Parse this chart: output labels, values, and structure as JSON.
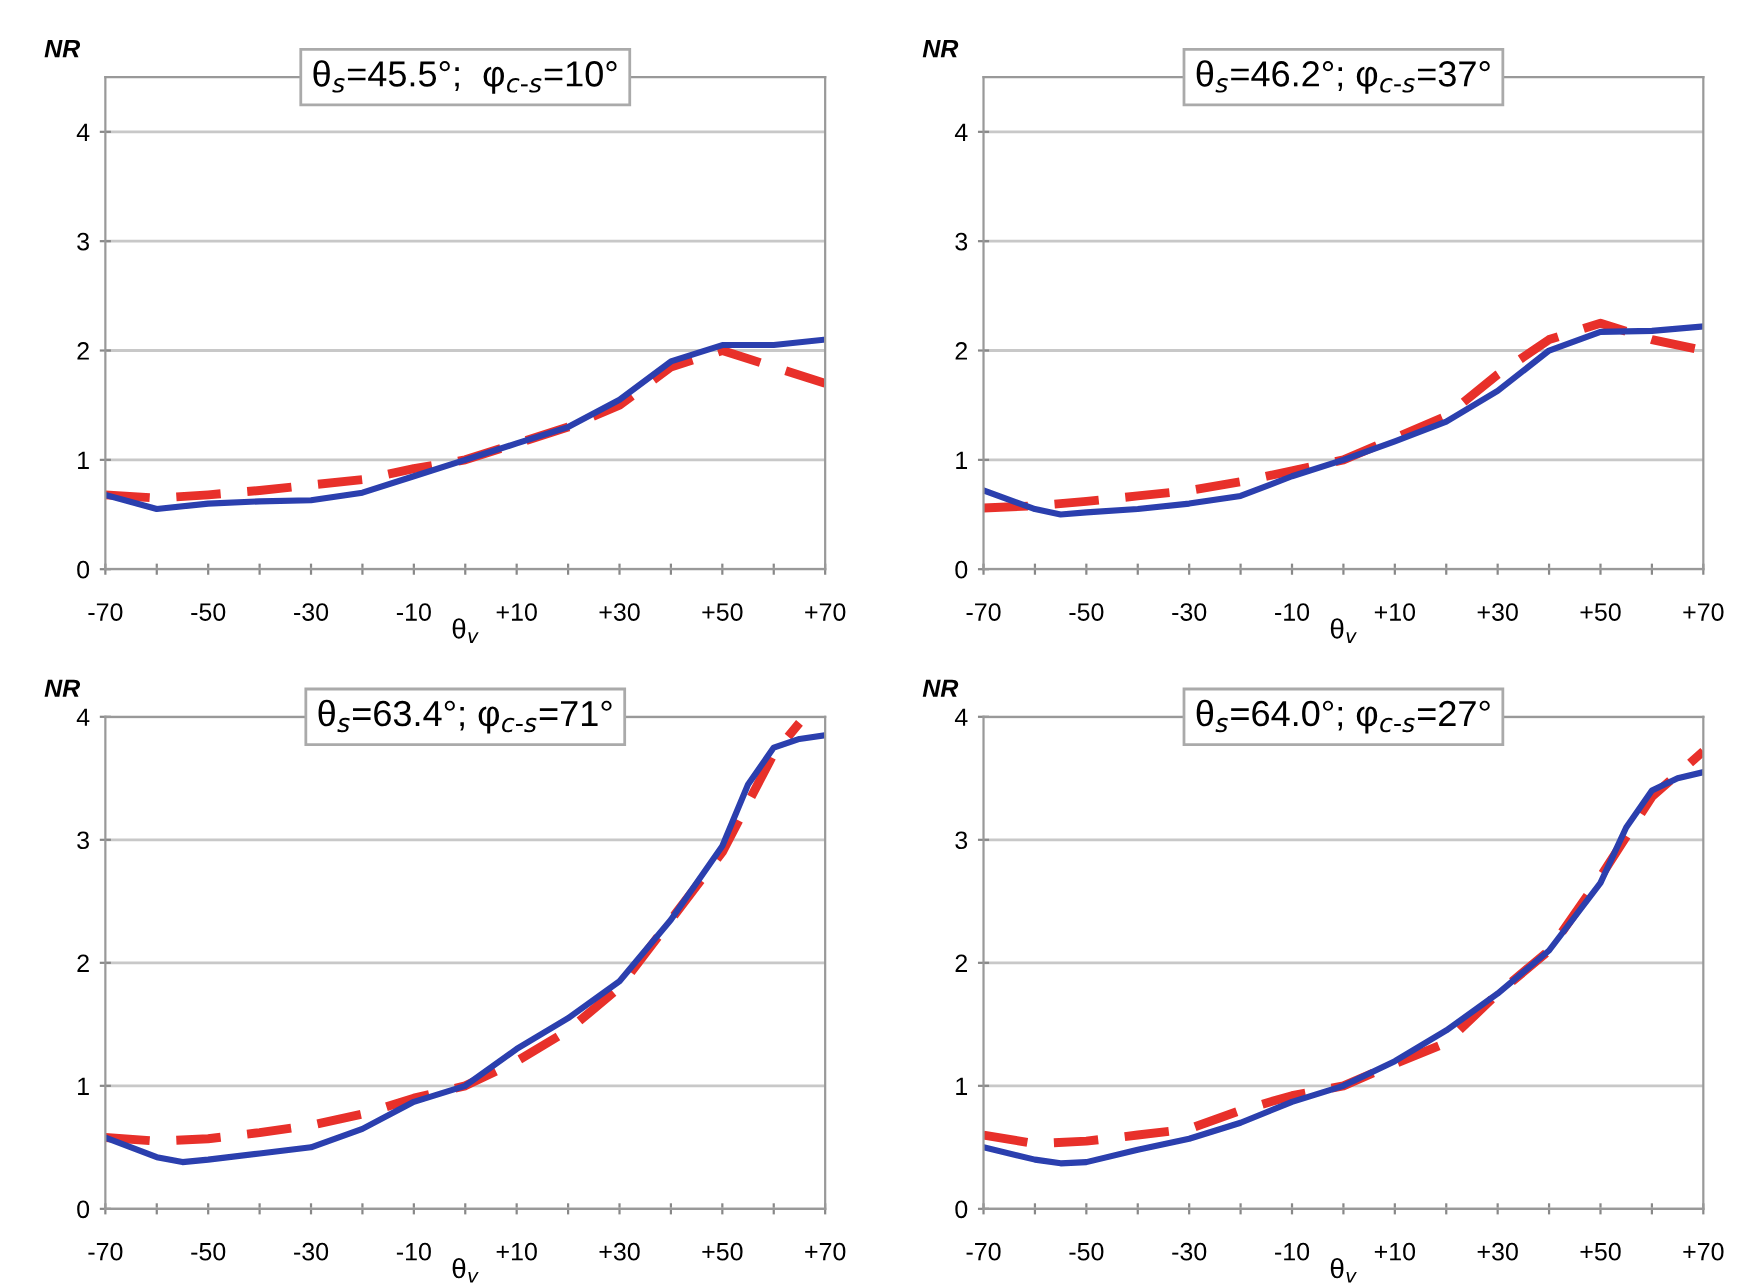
{
  "chart_data": [
    {
      "type": "line",
      "title": "θ$_{s}$=45.5°;  φ$_{c‐s}$=10°",
      "ylabel": "NR",
      "xlabel": "θ$_{v}$",
      "ylim": [
        0,
        4.5
      ],
      "yticks": [
        0,
        1,
        2,
        3,
        4
      ],
      "xlim": [
        -70,
        70
      ],
      "xticks": [
        -70,
        {
          "value": -60,
          "label": null
        },
        -50,
        {
          "value": -40,
          "label": null
        },
        -30,
        {
          "value": -20,
          "label": null
        },
        -10,
        {
          "value": 0,
          "label": null
        },
        {
          "value": 10,
          "label": "+10"
        },
        {
          "value": 20,
          "label": null
        },
        {
          "value": 30,
          "label": "+30"
        },
        {
          "value": 40,
          "label": null
        },
        {
          "value": 50,
          "label": "+50"
        },
        {
          "value": 60,
          "label": null
        },
        {
          "value": 70,
          "label": "+70"
        }
      ],
      "grid": "y",
      "legend": false,
      "series": [
        {
          "color": "#e8302a",
          "line_style": "dashed",
          "x": [
            -70,
            -60,
            -50,
            -40,
            -30,
            -20,
            -10,
            0,
            10,
            20,
            30,
            40,
            50,
            60,
            70
          ],
          "values": [
            0.68,
            0.65,
            0.68,
            0.72,
            0.77,
            0.82,
            0.92,
            1.0,
            1.15,
            1.3,
            1.5,
            1.85,
            2.0,
            1.85,
            1.7
          ]
        },
        {
          "color": "#2b3fae",
          "line_style": "solid",
          "x": [
            -70,
            -60,
            -50,
            -40,
            -30,
            -20,
            -10,
            0,
            10,
            20,
            30,
            40,
            50,
            60,
            70
          ],
          "values": [
            0.68,
            0.55,
            0.6,
            0.62,
            0.63,
            0.7,
            0.85,
            1.0,
            1.15,
            1.3,
            1.55,
            1.9,
            2.05,
            2.05,
            2.1
          ]
        }
      ]
    },
    {
      "type": "line",
      "title": "θ$_{s}$=46.2°; φ$_{c‐s}$=37°",
      "ylabel": "NR",
      "xlabel": "θ$_{v}$",
      "ylim": [
        0,
        4.5
      ],
      "yticks": [
        0,
        1,
        2,
        3,
        4
      ],
      "xlim": [
        -70,
        70
      ],
      "xticks": [
        -70,
        {
          "value": -60,
          "label": null
        },
        -50,
        {
          "value": -40,
          "label": null
        },
        -30,
        {
          "value": -20,
          "label": null
        },
        -10,
        {
          "value": 0,
          "label": null
        },
        {
          "value": 10,
          "label": "+10"
        },
        {
          "value": 20,
          "label": null
        },
        {
          "value": 30,
          "label": "+30"
        },
        {
          "value": 40,
          "label": null
        },
        {
          "value": 50,
          "label": "+50"
        },
        {
          "value": 60,
          "label": null
        },
        {
          "value": 70,
          "label": "+70"
        }
      ],
      "grid": "y",
      "legend": false,
      "series": [
        {
          "color": "#e8302a",
          "line_style": "dashed",
          "x": [
            -70,
            -60,
            -50,
            -40,
            -30,
            -20,
            -10,
            0,
            10,
            20,
            30,
            40,
            50,
            60,
            70
          ],
          "values": [
            0.56,
            0.58,
            0.62,
            0.67,
            0.72,
            0.8,
            0.9,
            1.0,
            1.2,
            1.4,
            1.78,
            2.1,
            2.25,
            2.1,
            2.0
          ]
        },
        {
          "color": "#2b3fae",
          "line_style": "solid",
          "x": [
            -70,
            -60,
            -55,
            -50,
            -40,
            -30,
            -20,
            -10,
            0,
            10,
            20,
            30,
            40,
            50,
            60,
            70
          ],
          "values": [
            0.72,
            0.55,
            0.5,
            0.52,
            0.55,
            0.6,
            0.67,
            0.85,
            1.0,
            1.17,
            1.35,
            1.63,
            2.0,
            2.17,
            2.18,
            2.22
          ]
        }
      ]
    },
    {
      "type": "line",
      "title": "θ$_{s}$=63.4°; φ$_{c‐s}$=71°",
      "ylabel": "NR",
      "xlabel": "θ$_{v}$",
      "ylim": [
        0,
        4
      ],
      "yticks": [
        0,
        1,
        2,
        3,
        4
      ],
      "xlim": [
        -70,
        70
      ],
      "xticks": [
        -70,
        {
          "value": -60,
          "label": null
        },
        -50,
        {
          "value": -40,
          "label": null
        },
        -30,
        {
          "value": -20,
          "label": null
        },
        -10,
        {
          "value": 0,
          "label": null
        },
        {
          "value": 10,
          "label": "+10"
        },
        {
          "value": 20,
          "label": null
        },
        {
          "value": 30,
          "label": "+30"
        },
        {
          "value": 40,
          "label": null
        },
        {
          "value": 50,
          "label": "+50"
        },
        {
          "value": 60,
          "label": null
        },
        {
          "value": 70,
          "label": "+70"
        }
      ],
      "grid": "y",
      "legend": false,
      "series": [
        {
          "color": "#e8302a",
          "line_style": "dashed",
          "x": [
            -70,
            -60,
            -50,
            -40,
            -30,
            -20,
            -10,
            0,
            10,
            20,
            30,
            40,
            50,
            60,
            65
          ],
          "values": [
            0.58,
            0.55,
            0.57,
            0.62,
            0.68,
            0.77,
            0.9,
            1.0,
            1.2,
            1.45,
            1.8,
            2.35,
            2.9,
            3.7,
            3.95
          ]
        },
        {
          "color": "#2b3fae",
          "line_style": "solid",
          "x": [
            -70,
            -60,
            -55,
            -50,
            -40,
            -30,
            -20,
            -10,
            0,
            10,
            20,
            30,
            40,
            50,
            55,
            60,
            65,
            70
          ],
          "values": [
            0.58,
            0.42,
            0.38,
            0.4,
            0.45,
            0.5,
            0.65,
            0.87,
            1.0,
            1.3,
            1.55,
            1.85,
            2.35,
            2.95,
            3.45,
            3.75,
            3.82,
            3.85
          ]
        }
      ]
    },
    {
      "type": "line",
      "title": "θ$_{s}$=64.0°; φ$_{c‐s}$=27°",
      "ylabel": "NR",
      "xlabel": "θ$_{v}$",
      "ylim": [
        0,
        4
      ],
      "yticks": [
        0,
        1,
        2,
        3,
        4
      ],
      "xlim": [
        -70,
        70
      ],
      "xticks": [
        -70,
        {
          "value": -60,
          "label": null
        },
        -50,
        {
          "value": -40,
          "label": null
        },
        -30,
        {
          "value": -20,
          "label": null
        },
        -10,
        {
          "value": 0,
          "label": null
        },
        {
          "value": 10,
          "label": "+10"
        },
        {
          "value": 20,
          "label": null
        },
        {
          "value": 30,
          "label": "+30"
        },
        {
          "value": 40,
          "label": null
        },
        {
          "value": 50,
          "label": "+50"
        },
        {
          "value": 60,
          "label": null
        },
        {
          "value": 70,
          "label": "+70"
        }
      ],
      "grid": "y",
      "legend": false,
      "series": [
        {
          "color": "#e8302a",
          "line_style": "dashed",
          "x": [
            -70,
            -60,
            -50,
            -40,
            -30,
            -20,
            -10,
            0,
            10,
            20,
            30,
            40,
            50,
            60,
            70
          ],
          "values": [
            0.6,
            0.53,
            0.55,
            0.6,
            0.65,
            0.8,
            0.92,
            1.0,
            1.18,
            1.35,
            1.75,
            2.1,
            2.7,
            3.35,
            3.72
          ]
        },
        {
          "color": "#2b3fae",
          "line_style": "solid",
          "x": [
            -70,
            -60,
            -55,
            -50,
            -40,
            -30,
            -20,
            -10,
            0,
            10,
            20,
            30,
            40,
            50,
            55,
            60,
            65,
            70
          ],
          "values": [
            0.5,
            0.4,
            0.37,
            0.38,
            0.48,
            0.57,
            0.7,
            0.87,
            1.0,
            1.2,
            1.45,
            1.75,
            2.1,
            2.65,
            3.1,
            3.4,
            3.5,
            3.55
          ]
        }
      ]
    }
  ]
}
